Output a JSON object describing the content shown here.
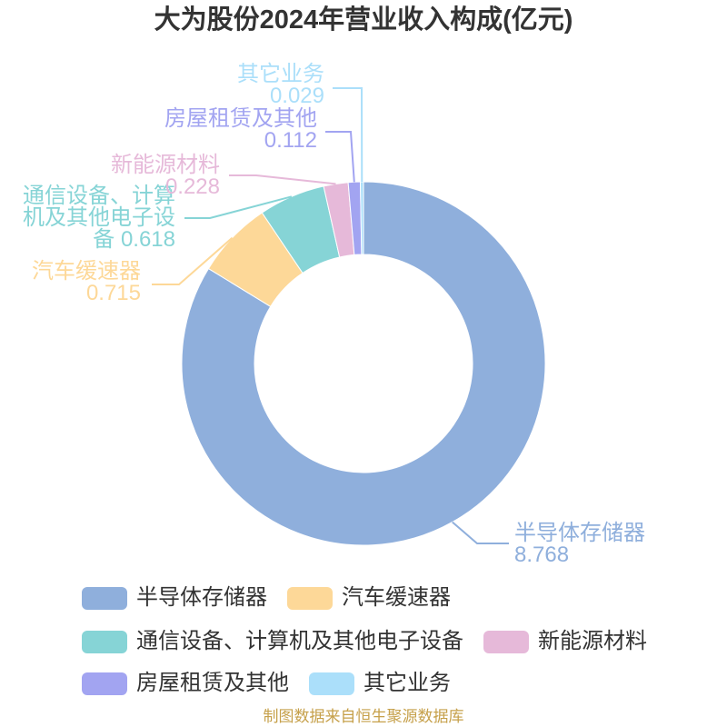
{
  "chart_data": {
    "type": "pie",
    "donut": true,
    "title": "大为股份2024年营业收入构成(亿元)",
    "categories": [
      "半导体存储器",
      "汽车缓速器",
      "通信设备、计算机及其他电子设备",
      "新能源材料",
      "房屋租赁及其他",
      "其它业务"
    ],
    "values": [
      8.768,
      0.715,
      0.618,
      0.228,
      0.112,
      0.029
    ],
    "colors": [
      "#8fafdc",
      "#fdd898",
      "#86d4d6",
      "#e6b9d9",
      "#a2a4f1",
      "#abdffa"
    ],
    "legend_position": "bottom"
  },
  "source_note": "制图数据来自恒生聚源数据库"
}
